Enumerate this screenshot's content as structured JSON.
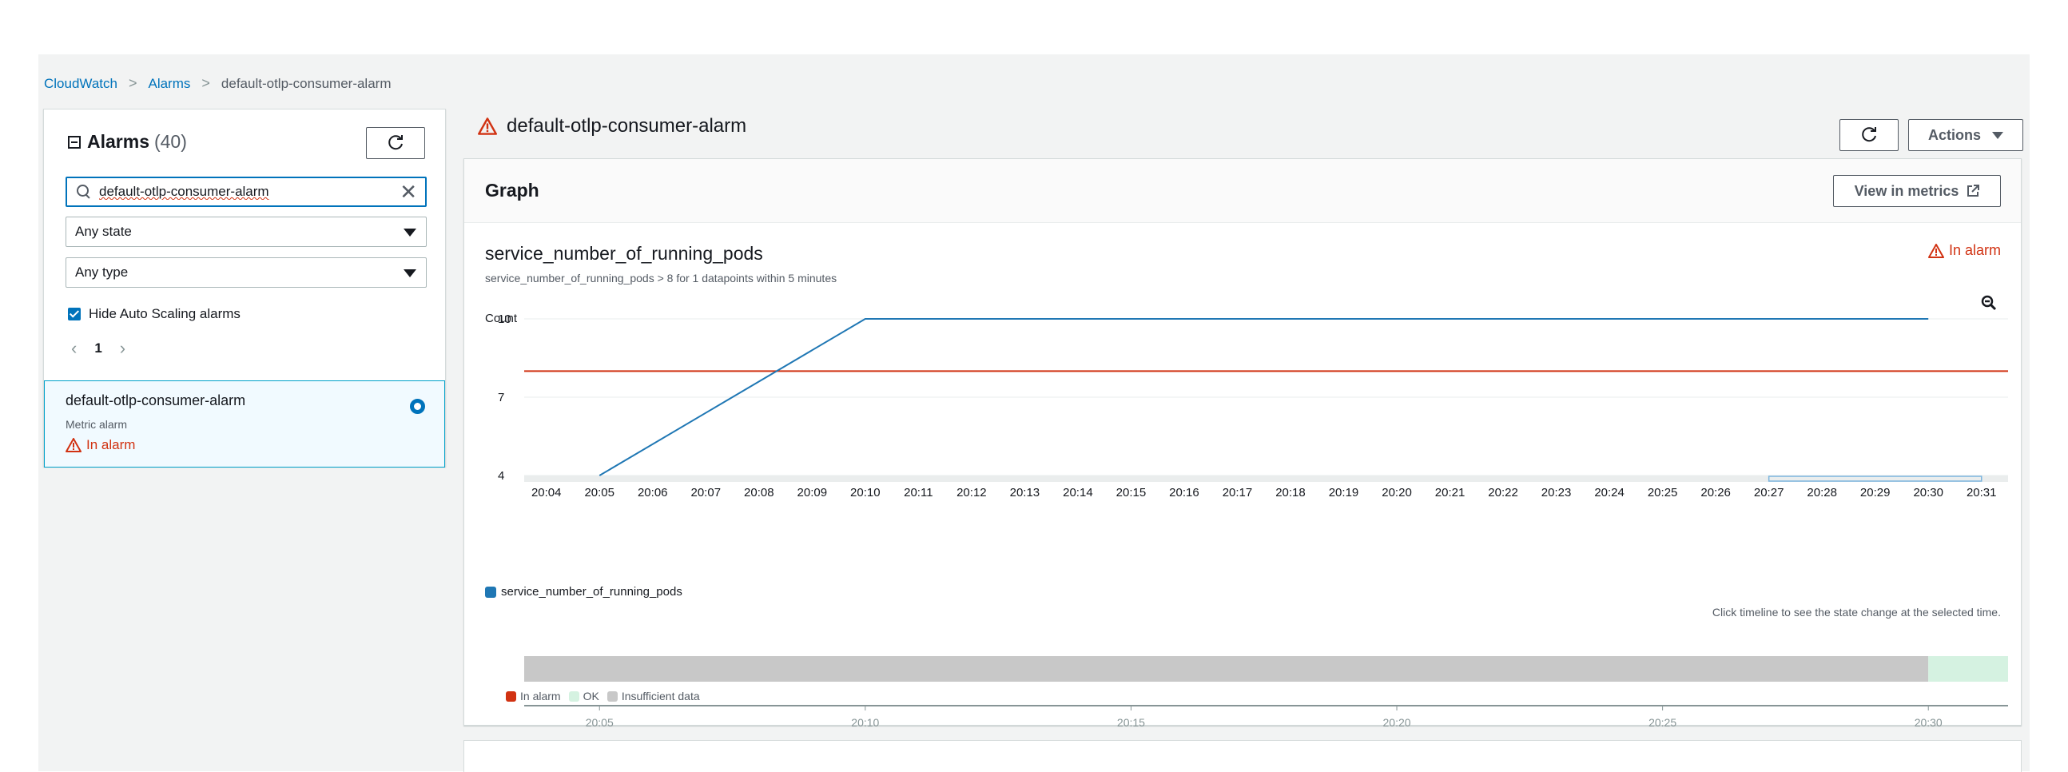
{
  "breadcrumb": {
    "items": [
      "CloudWatch",
      "Alarms",
      "default-otlp-consumer-alarm"
    ]
  },
  "alarms_panel": {
    "title": "Alarms",
    "count": "(40)",
    "search_value": "default-otlp-consumer-alarm",
    "state_select": "Any state",
    "type_select": "Any type",
    "hide_autoscaling_label": "Hide Auto Scaling alarms",
    "hide_autoscaling_checked": true,
    "page": "1",
    "items": [
      {
        "name": "default-otlp-consumer-alarm",
        "type": "Metric alarm",
        "state": "In alarm",
        "selected": true
      }
    ]
  },
  "detail": {
    "title": "default-otlp-consumer-alarm",
    "actions_label": "Actions"
  },
  "graph": {
    "header": "Graph",
    "view_in_metrics": "View in metrics",
    "metric_name": "service_number_of_running_pods",
    "description": "service_number_of_running_pods > 8 for 1 datapoints within 5 minutes",
    "state": "In alarm",
    "hint": "Click timeline to see the state change at the selected time.",
    "state_legend": [
      {
        "label": "In alarm",
        "color": "#d13212"
      },
      {
        "label": "OK",
        "color": "#d5f2e1"
      },
      {
        "label": "Insufficient data",
        "color": "#c8c8c8"
      }
    ]
  },
  "colors": {
    "accent": "#0073bb",
    "alarm": "#d13212",
    "series": "#1f77b4"
  },
  "chart_data": {
    "type": "line",
    "ylabel": "Count",
    "ylim": [
      4,
      10
    ],
    "yticks": [
      4,
      7,
      10
    ],
    "x_ticks": [
      "20:04",
      "20:05",
      "20:06",
      "20:07",
      "20:08",
      "20:09",
      "20:10",
      "20:11",
      "20:12",
      "20:13",
      "20:14",
      "20:15",
      "20:16",
      "20:17",
      "20:18",
      "20:19",
      "20:20",
      "20:21",
      "20:22",
      "20:23",
      "20:24",
      "20:25",
      "20:26",
      "20:27",
      "20:28",
      "20:29",
      "20:30",
      "20:31"
    ],
    "series": [
      {
        "name": "service_number_of_running_pods",
        "x": [
          "20:05",
          "20:10",
          "20:30"
        ],
        "y": [
          4,
          10,
          10
        ]
      }
    ],
    "threshold": 8,
    "timeline": {
      "ticks": [
        "20:05",
        "20:10",
        "20:15",
        "20:20",
        "20:25",
        "20:30"
      ],
      "segments": [
        {
          "state": "Insufficient data",
          "from": "20:03:35",
          "to": "20:30"
        },
        {
          "state": "OK",
          "from": "20:30",
          "to": "20:31:30"
        }
      ]
    }
  }
}
